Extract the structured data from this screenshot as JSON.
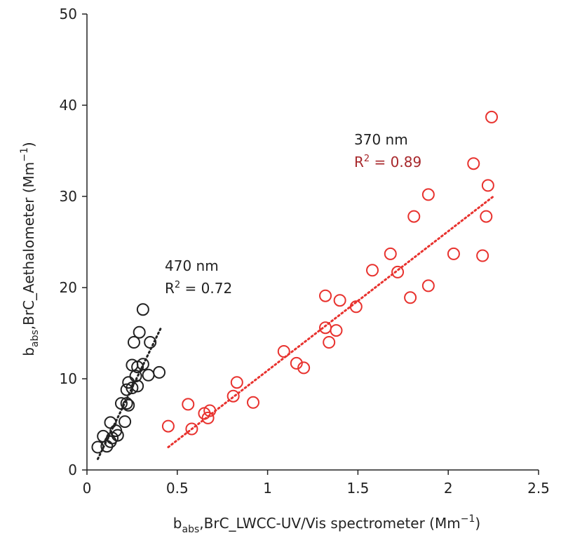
{
  "chart_data": {
    "type": "scatter",
    "xlabel": [
      "b",
      "abs",
      ",BrC_LWCC-UV/Vis spectrometer (Mm",
      "−1",
      ")"
    ],
    "ylabel": [
      "b",
      "abs",
      ",BrC_Aethalometer (Mm",
      "−1",
      ")"
    ],
    "xlim": [
      0,
      2.5
    ],
    "ylim": [
      0,
      50
    ],
    "xticks": [
      0,
      0.5,
      1,
      1.5,
      2,
      2.5
    ],
    "yticks": [
      0,
      10,
      20,
      30,
      40,
      50
    ],
    "grid": false,
    "series": [
      {
        "color": "#222222",
        "x": [
          0.06,
          0.09,
          0.11,
          0.13,
          0.13,
          0.14,
          0.16,
          0.17,
          0.19,
          0.21,
          0.22,
          0.22,
          0.23,
          0.23,
          0.25,
          0.25,
          0.26,
          0.27,
          0.28,
          0.28,
          0.29,
          0.31,
          0.31,
          0.34,
          0.35,
          0.4
        ],
        "values": [
          2.5,
          3.7,
          2.6,
          3.1,
          5.2,
          3.5,
          4.3,
          3.8,
          7.3,
          5.3,
          8.8,
          7.3,
          7.1,
          9.6,
          11.5,
          9.0,
          14.0,
          10.3,
          9.2,
          11.3,
          15.1,
          11.6,
          17.6,
          10.4,
          14.0,
          10.7
        ]
      },
      {
        "color": "#e8322e",
        "x": [
          0.45,
          0.56,
          0.58,
          0.65,
          0.67,
          0.68,
          0.81,
          0.83,
          0.92,
          1.09,
          1.16,
          1.2,
          1.32,
          1.32,
          1.34,
          1.38,
          1.4,
          1.49,
          1.58,
          1.68,
          1.72,
          1.79,
          1.81,
          1.89,
          1.89,
          2.03,
          2.14,
          2.19,
          2.21,
          2.22,
          2.24
        ],
        "values": [
          4.8,
          7.2,
          4.5,
          6.2,
          5.7,
          6.5,
          8.1,
          9.6,
          7.4,
          13.0,
          11.7,
          11.2,
          19.1,
          15.6,
          14.0,
          15.3,
          18.6,
          17.9,
          21.9,
          23.7,
          21.7,
          18.9,
          27.8,
          30.2,
          20.2,
          23.7,
          33.6,
          23.5,
          27.8,
          31.2,
          38.7
        ]
      }
    ],
    "trendlines": [
      {
        "color": "#222222",
        "x": [
          0.06,
          0.41
        ],
        "values": [
          1.2,
          15.6
        ]
      },
      {
        "color": "#e8322e",
        "x": [
          0.45,
          2.25
        ],
        "values": [
          2.5,
          30.0
        ]
      }
    ],
    "annotations": [
      {
        "label": "470 nm",
        "r2": [
          "R",
          "2",
          " = 0.72"
        ],
        "color": "#222222"
      },
      {
        "label": "370 nm",
        "r2": [
          "R",
          "2",
          " = 0.89"
        ],
        "color": "#a8282c"
      }
    ]
  }
}
